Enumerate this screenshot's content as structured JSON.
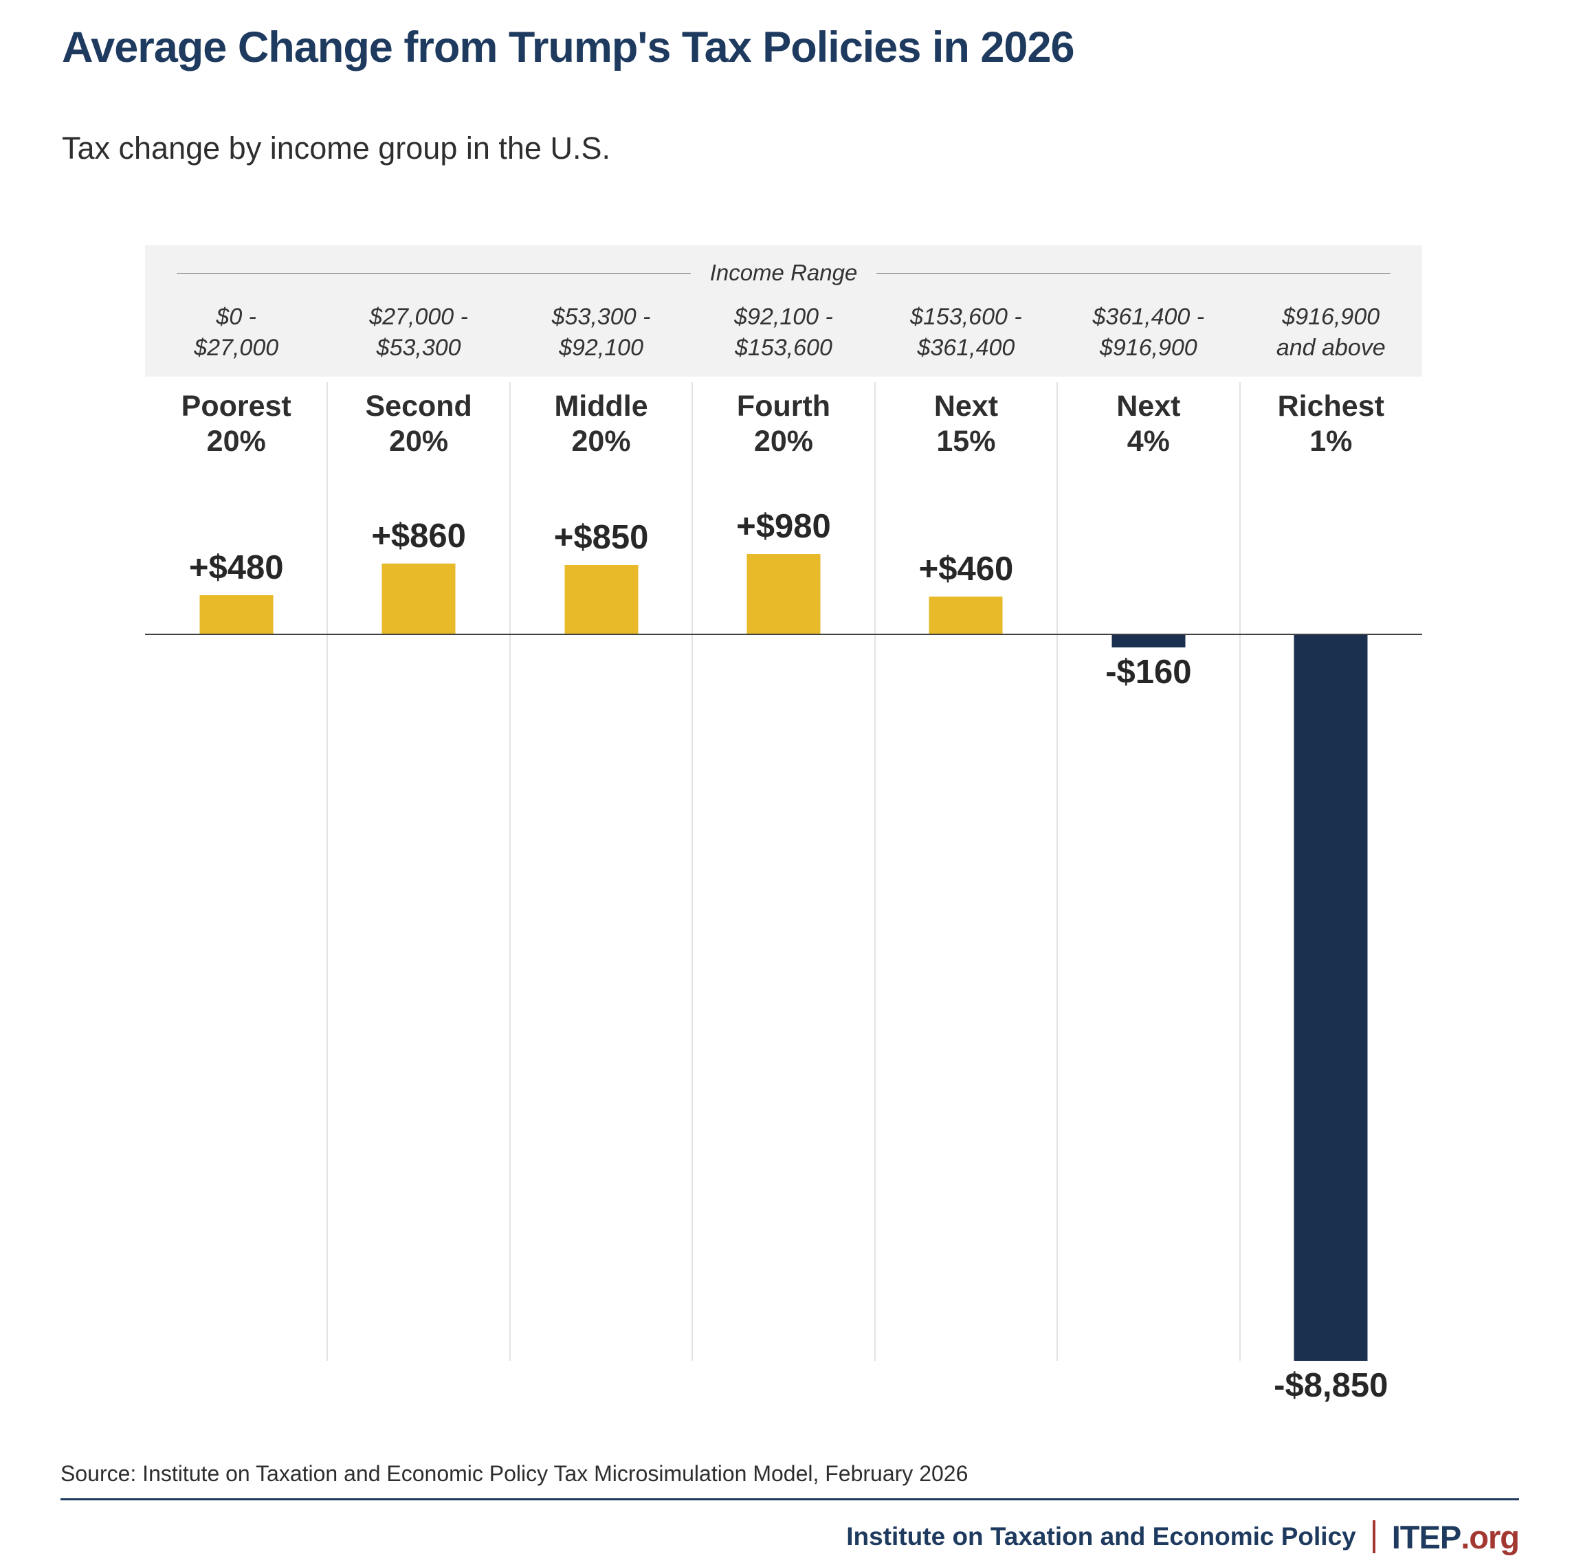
{
  "page": {
    "title": "Average Change from Trump's Tax Policies in 2026",
    "subtitle": "Tax change by income group in the U.S.",
    "source": "Source: Institute on Taxation and Economic Policy Tax Microsimulation Model, February 2026",
    "footer": {
      "organization": "Institute on Taxation and Economic Policy",
      "logo_main": "ITEP",
      "logo_suffix": ".org"
    }
  },
  "chart_data": {
    "type": "bar",
    "title": "Average Change from Trump's Tax Policies in 2026",
    "subtitle": "Tax change by income group in the U.S.",
    "income_header_label": "Income Range",
    "categories": [
      "Poorest 20%",
      "Second 20%",
      "Middle 20%",
      "Fourth 20%",
      "Next 15%",
      "Next 4%",
      "Richest 1%"
    ],
    "category_display": [
      [
        "Poorest",
        "20%"
      ],
      [
        "Second",
        "20%"
      ],
      [
        "Middle",
        "20%"
      ],
      [
        "Fourth",
        "20%"
      ],
      [
        "Next",
        "15%"
      ],
      [
        "Next",
        "4%"
      ],
      [
        "Richest",
        "1%"
      ]
    ],
    "income_ranges": [
      "$0 - $27,000",
      "$27,000 - $53,300",
      "$53,300 - $92,100",
      "$92,100 - $153,600",
      "$153,600 - $361,400",
      "$361,400 - $916,900",
      "$916,900 and above"
    ],
    "income_ranges_display": [
      [
        "$0 -",
        "$27,000"
      ],
      [
        "$27,000 -",
        "$53,300"
      ],
      [
        "$53,300 -",
        "$92,100"
      ],
      [
        "$92,100 -",
        "$153,600"
      ],
      [
        "$153,600 -",
        "$361,400"
      ],
      [
        "$361,400 -",
        "$916,900"
      ],
      [
        "$916,900",
        "and above"
      ]
    ],
    "values": [
      480,
      860,
      850,
      980,
      460,
      -160,
      -8850
    ],
    "value_labels": [
      "+$480",
      "+$860",
      "+$850",
      "+$980",
      "+$460",
      "-$160",
      "-$8,850"
    ],
    "ylabel": "",
    "xlabel": "",
    "ylim": [
      -8850,
      980
    ],
    "baseline": 0,
    "grid": false,
    "column_separators": true,
    "positive_color": "#e8ba29",
    "negative_color": "#1b2f4e",
    "source": "Source: Institute on Taxation and Economic Policy Tax Microsimulation Model, February 2026"
  }
}
